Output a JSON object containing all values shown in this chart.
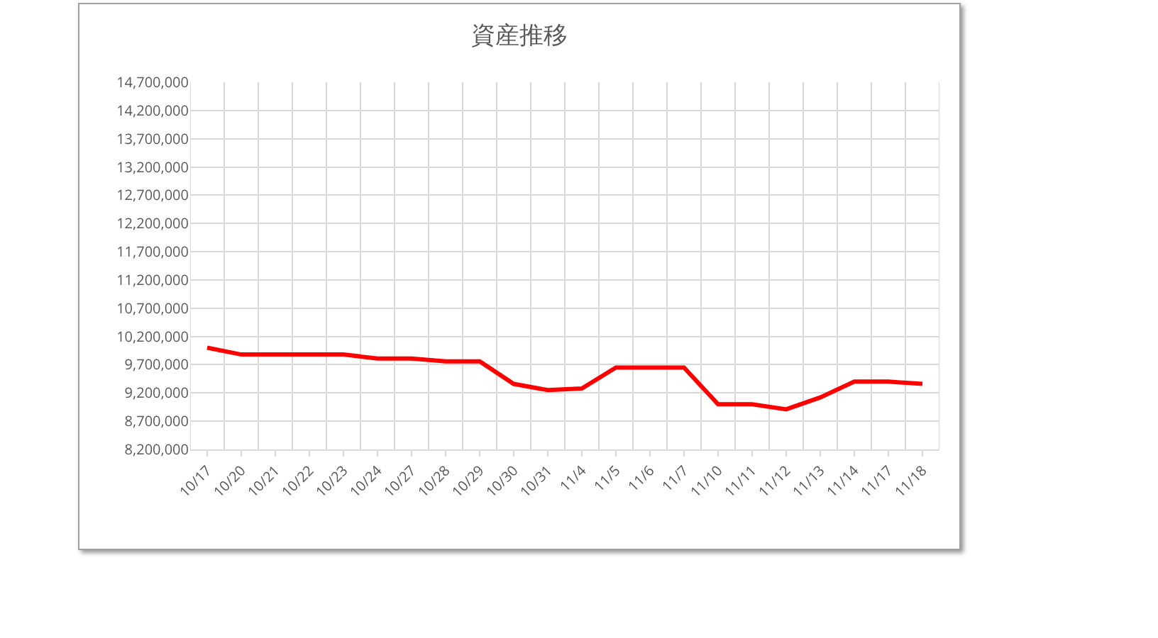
{
  "chart_data": {
    "type": "line",
    "title": "資産推移",
    "categories": [
      "10/17",
      "10/20",
      "10/21",
      "10/22",
      "10/23",
      "10/24",
      "10/27",
      "10/28",
      "10/29",
      "10/30",
      "10/31",
      "11/4",
      "11/5",
      "11/6",
      "11/7",
      "11/10",
      "11/11",
      "11/12",
      "11/13",
      "11/14",
      "11/17",
      "11/18"
    ],
    "series": [
      {
        "color": "#ff0000",
        "values": [
          10000000,
          9880000,
          9880000,
          9880000,
          9880000,
          9810000,
          9810000,
          9760000,
          9760000,
          9360000,
          9250000,
          9280000,
          9650000,
          9650000,
          9650000,
          9000000,
          9000000,
          8910000,
          9120000,
          9400000,
          9400000,
          9360000
        ]
      }
    ],
    "ylim": [
      8200000,
      14700000
    ],
    "yticks": [
      {
        "value": 8200000,
        "label": "8,200,000"
      },
      {
        "value": 8700000,
        "label": "8,700,000"
      },
      {
        "value": 9200000,
        "label": "9,200,000"
      },
      {
        "value": 9700000,
        "label": "9,700,000"
      },
      {
        "value": 10200000,
        "label": "10,200,000"
      },
      {
        "value": 10700000,
        "label": "10,700,000"
      },
      {
        "value": 11200000,
        "label": "11,200,000"
      },
      {
        "value": 11700000,
        "label": "11,700,000"
      },
      {
        "value": 12200000,
        "label": "12,200,000"
      },
      {
        "value": 12700000,
        "label": "12,700,000"
      },
      {
        "value": 13200000,
        "label": "13,200,000"
      },
      {
        "value": 13700000,
        "label": "13,700,000"
      },
      {
        "value": 14200000,
        "label": "14,200,000"
      },
      {
        "value": 14700000,
        "label": "14,700,000"
      }
    ],
    "grid": true,
    "marker": "none",
    "line_style": "solid"
  }
}
